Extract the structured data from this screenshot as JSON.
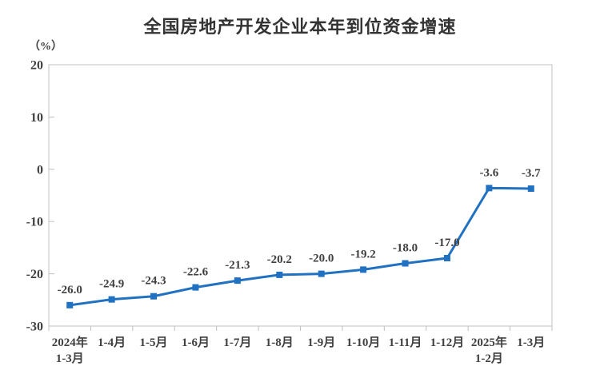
{
  "chart_data": {
    "type": "line",
    "title": "全国房地产开发企业本年到位资金增速",
    "unit_label": "（%）",
    "categories": [
      [
        "2024年",
        "1-3月"
      ],
      [
        "1-4月"
      ],
      [
        "1-5月"
      ],
      [
        "1-6月"
      ],
      [
        "1-7月"
      ],
      [
        "1-8月"
      ],
      [
        "1-9月"
      ],
      [
        "1-10月"
      ],
      [
        "1-11月"
      ],
      [
        "1-12月"
      ],
      [
        "2025年",
        "1-2月"
      ],
      [
        "1-3月"
      ]
    ],
    "values": [
      -26.0,
      -24.9,
      -24.3,
      -22.6,
      -21.3,
      -20.2,
      -20.0,
      -19.2,
      -18.0,
      -17.0,
      -3.6,
      -3.7
    ],
    "data_labels": [
      "-26.0",
      "-24.9",
      "-24.3",
      "-22.6",
      "-21.3",
      "-20.2",
      "-20.0",
      "-19.2",
      "-18.0",
      "-17.0",
      "-3.6",
      "-3.7"
    ],
    "yticks": [
      20,
      10,
      0,
      -10,
      -20,
      -30
    ],
    "ylim": [
      -30,
      20
    ],
    "xlabel": "",
    "ylabel": "",
    "grid": false,
    "legend": "none",
    "line_color": "#2171C2",
    "axis_color": "#C0C0C0",
    "text_color": "#404040",
    "title_color": "#333333",
    "background_color": "#FFFFFF"
  }
}
